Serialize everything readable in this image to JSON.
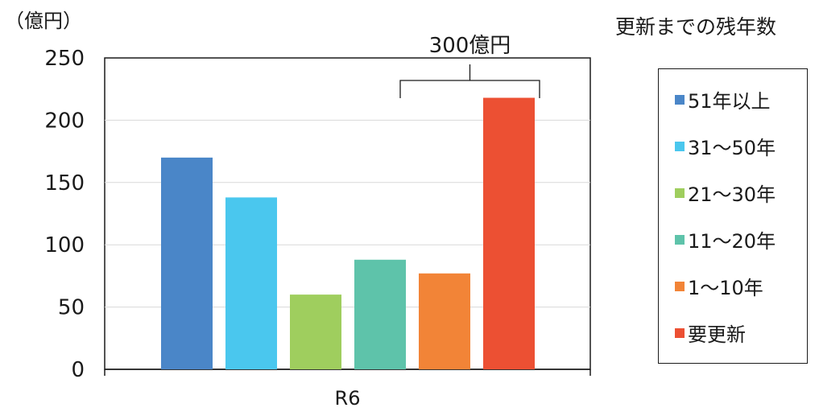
{
  "chart_data": {
    "type": "bar",
    "unit_label": "（億円）",
    "categories": [
      "R6"
    ],
    "ylim": [
      0,
      250
    ],
    "yticks": [
      0,
      50,
      100,
      150,
      200,
      250
    ],
    "grid": true,
    "legend_title": "更新までの残年数",
    "legend_position": "right",
    "series": [
      {
        "name": "51年以上",
        "color": "#4A86C8",
        "values": [
          170
        ]
      },
      {
        "name": "31～50年",
        "color": "#4AC7EE",
        "values": [
          138
        ]
      },
      {
        "name": "21～30年",
        "color": "#9FCE5E",
        "values": [
          60
        ]
      },
      {
        "name": "11～20年",
        "color": "#5EC3AA",
        "values": [
          88
        ]
      },
      {
        "name": "1～10年",
        "color": "#F28437",
        "values": [
          77
        ]
      },
      {
        "name": "要更新",
        "color": "#EC5033",
        "values": [
          218
        ]
      }
    ],
    "annotation": {
      "text": "300億円",
      "series_span": [
        3,
        5
      ]
    }
  }
}
